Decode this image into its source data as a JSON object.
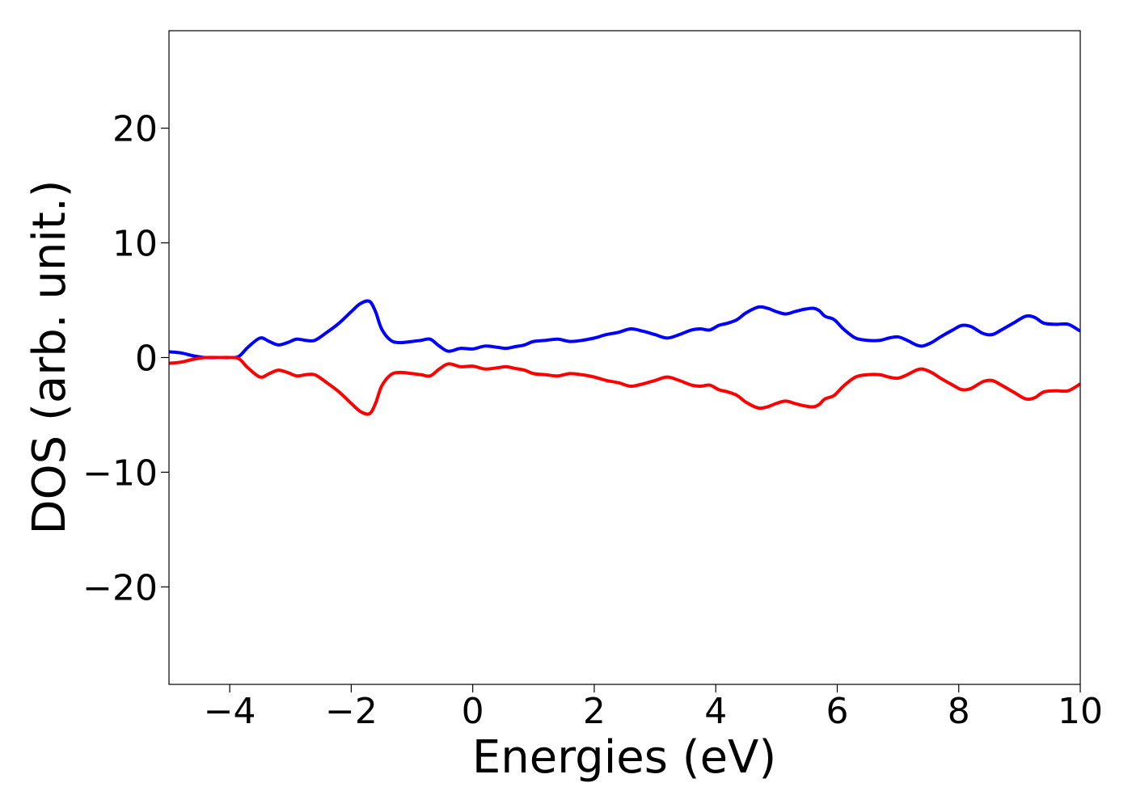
{
  "chart_data": {
    "type": "line",
    "title": "",
    "xlabel": "Energies (eV)",
    "ylabel": "DOS (arb. unit.)",
    "xlim": [
      -5,
      10
    ],
    "ylim": [
      -28.5,
      28.5
    ],
    "x_ticks": [
      -4,
      -2,
      0,
      2,
      4,
      6,
      8,
      10
    ],
    "x_tick_labels": [
      "−4",
      "−2",
      "0",
      "2",
      "4",
      "6",
      "8",
      "10"
    ],
    "y_ticks": [
      -20,
      -10,
      0,
      10,
      20
    ],
    "y_tick_labels": [
      "−20",
      "−10",
      "0",
      "10",
      "20"
    ],
    "grid": false,
    "legend": "none",
    "series": [
      {
        "color": "#0000ff",
        "x": [
          -5.0,
          -4.8,
          -4.6,
          -4.4,
          -4.2,
          -4.0,
          -3.85,
          -3.7,
          -3.5,
          -3.35,
          -3.2,
          -3.05,
          -2.9,
          -2.75,
          -2.6,
          -2.4,
          -2.2,
          -2.0,
          -1.85,
          -1.7,
          -1.6,
          -1.5,
          -1.35,
          -1.2,
          -1.0,
          -0.85,
          -0.7,
          -0.55,
          -0.4,
          -0.2,
          0.0,
          0.2,
          0.4,
          0.55,
          0.7,
          0.85,
          1.0,
          1.2,
          1.4,
          1.6,
          1.8,
          2.0,
          2.2,
          2.4,
          2.6,
          2.8,
          3.0,
          3.2,
          3.4,
          3.6,
          3.75,
          3.9,
          4.05,
          4.2,
          4.35,
          4.5,
          4.7,
          4.85,
          5.0,
          5.15,
          5.3,
          5.45,
          5.6,
          5.7,
          5.8,
          5.95,
          6.1,
          6.3,
          6.5,
          6.7,
          6.85,
          7.0,
          7.15,
          7.3,
          7.4,
          7.55,
          7.7,
          7.9,
          8.05,
          8.2,
          8.4,
          8.55,
          8.7,
          8.9,
          9.1,
          9.25,
          9.4,
          9.6,
          9.8,
          10.0
        ],
        "y": [
          0.5,
          0.4,
          0.15,
          0.0,
          0.0,
          0.0,
          0.1,
          0.9,
          1.7,
          1.4,
          1.1,
          1.3,
          1.6,
          1.5,
          1.5,
          2.2,
          3.0,
          4.0,
          4.7,
          4.9,
          4.0,
          2.5,
          1.5,
          1.3,
          1.4,
          1.5,
          1.6,
          1.0,
          0.55,
          0.8,
          0.75,
          1.0,
          0.9,
          0.8,
          0.95,
          1.1,
          1.4,
          1.5,
          1.6,
          1.4,
          1.5,
          1.7,
          2.0,
          2.2,
          2.5,
          2.3,
          2.0,
          1.7,
          2.0,
          2.4,
          2.5,
          2.4,
          2.8,
          3.0,
          3.3,
          3.9,
          4.4,
          4.3,
          4.0,
          3.8,
          4.0,
          4.2,
          4.3,
          4.1,
          3.6,
          3.3,
          2.5,
          1.7,
          1.5,
          1.5,
          1.7,
          1.8,
          1.5,
          1.1,
          1.0,
          1.3,
          1.8,
          2.4,
          2.8,
          2.7,
          2.1,
          2.0,
          2.4,
          3.0,
          3.6,
          3.5,
          3.0,
          2.9,
          2.9,
          2.3
        ]
      },
      {
        "color": "#ff0000",
        "x": [
          -5.0,
          -4.8,
          -4.6,
          -4.4,
          -4.2,
          -4.0,
          -3.85,
          -3.7,
          -3.5,
          -3.35,
          -3.2,
          -3.05,
          -2.9,
          -2.75,
          -2.6,
          -2.4,
          -2.2,
          -2.0,
          -1.85,
          -1.7,
          -1.6,
          -1.5,
          -1.35,
          -1.2,
          -1.0,
          -0.85,
          -0.7,
          -0.55,
          -0.4,
          -0.2,
          0.0,
          0.2,
          0.4,
          0.55,
          0.7,
          0.85,
          1.0,
          1.2,
          1.4,
          1.6,
          1.8,
          2.0,
          2.2,
          2.4,
          2.6,
          2.8,
          3.0,
          3.2,
          3.4,
          3.6,
          3.75,
          3.9,
          4.05,
          4.2,
          4.35,
          4.5,
          4.7,
          4.85,
          5.0,
          5.15,
          5.3,
          5.45,
          5.6,
          5.7,
          5.8,
          5.95,
          6.1,
          6.3,
          6.5,
          6.7,
          6.85,
          7.0,
          7.15,
          7.3,
          7.4,
          7.55,
          7.7,
          7.9,
          8.05,
          8.2,
          8.4,
          8.55,
          8.7,
          8.9,
          9.1,
          9.25,
          9.4,
          9.6,
          9.8,
          10.0
        ],
        "y": [
          -0.5,
          -0.4,
          -0.15,
          0.0,
          0.0,
          0.0,
          -0.1,
          -0.9,
          -1.7,
          -1.4,
          -1.1,
          -1.3,
          -1.6,
          -1.5,
          -1.5,
          -2.2,
          -3.0,
          -4.0,
          -4.7,
          -4.9,
          -4.0,
          -2.5,
          -1.5,
          -1.3,
          -1.4,
          -1.5,
          -1.6,
          -1.0,
          -0.55,
          -0.8,
          -0.75,
          -1.0,
          -0.9,
          -0.8,
          -0.95,
          -1.1,
          -1.4,
          -1.5,
          -1.6,
          -1.4,
          -1.5,
          -1.7,
          -2.0,
          -2.2,
          -2.5,
          -2.3,
          -2.0,
          -1.7,
          -2.0,
          -2.4,
          -2.5,
          -2.4,
          -2.8,
          -3.0,
          -3.3,
          -3.9,
          -4.4,
          -4.3,
          -4.0,
          -3.8,
          -4.0,
          -4.2,
          -4.3,
          -4.1,
          -3.6,
          -3.3,
          -2.5,
          -1.7,
          -1.5,
          -1.5,
          -1.7,
          -1.8,
          -1.5,
          -1.1,
          -1.0,
          -1.3,
          -1.8,
          -2.4,
          -2.8,
          -2.7,
          -2.1,
          -2.0,
          -2.4,
          -3.0,
          -3.6,
          -3.5,
          -3.0,
          -2.9,
          -2.9,
          -2.3
        ]
      }
    ]
  }
}
